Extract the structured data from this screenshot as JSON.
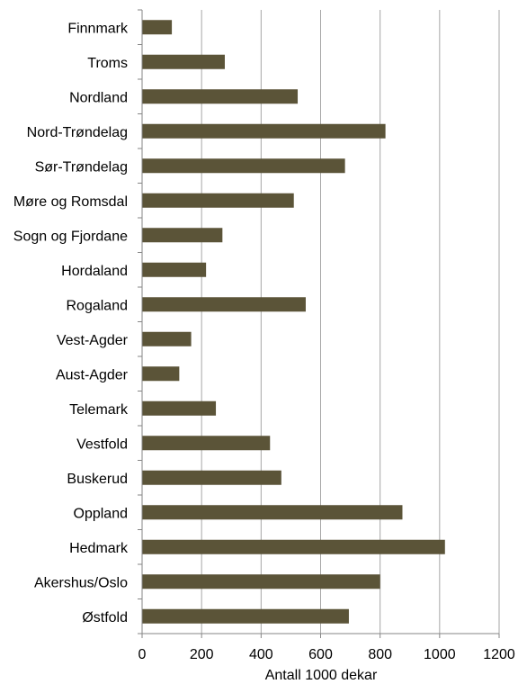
{
  "chart_data": {
    "type": "bar",
    "orientation": "horizontal",
    "title": "",
    "xlabel": "Antall 1000 dekar",
    "ylabel": "",
    "categories": [
      "Finnmark",
      "Troms",
      "Nordland",
      "Nord-Trøndelag",
      "Sør-Trøndelag",
      "Møre og Romsdal",
      "Sogn og Fjordane",
      "Hordaland",
      "Rogaland",
      "Vest-Agder",
      "Aust-Agder",
      "Telemark",
      "Vestfold",
      "Buskerud",
      "Oppland",
      "Hedmark",
      "Akershus/Oslo",
      "Østfold"
    ],
    "values": [
      100,
      278,
      523,
      818,
      682,
      510,
      270,
      215,
      550,
      165,
      125,
      248,
      430,
      468,
      875,
      1018,
      800,
      695
    ],
    "xlim": [
      0,
      1200
    ],
    "x_ticks": [
      0,
      200,
      400,
      600,
      800,
      1000,
      1200
    ],
    "grid": true,
    "legend": "none",
    "bar_color": "#5b5438",
    "gridline_color": "#a6a6a6"
  }
}
